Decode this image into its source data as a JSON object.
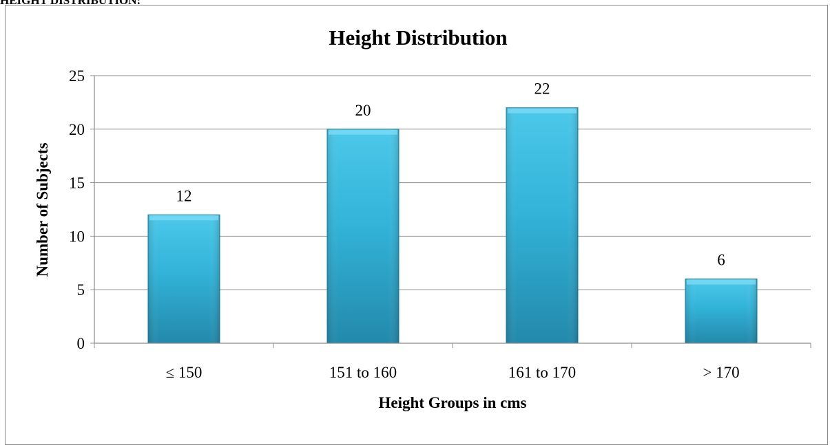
{
  "page_heading": "HEIGHT DISTRIBUTION:",
  "colors": {
    "bar_top": "#4cc8ea",
    "bar_mid": "#32b3d8",
    "bar_bottom": "#2389ab",
    "bar_stroke": "#1f7d9c",
    "gridline": "#8c8c8c",
    "axis": "#8c8c8c"
  },
  "chart_data": {
    "type": "bar",
    "title": "Height Distribution",
    "xlabel": "Height Groups in cms",
    "ylabel": "Number of Subjects",
    "categories": [
      "≤ 150",
      "151 to 160",
      "161 to 170",
      "> 170"
    ],
    "values": [
      12,
      20,
      22,
      6
    ],
    "data_labels": [
      "12",
      "20",
      "22",
      "6"
    ],
    "ylim": [
      0,
      25
    ],
    "yticks": [
      0,
      5,
      10,
      15,
      20,
      25
    ],
    "ytick_labels": [
      "0",
      "5",
      "10",
      "15",
      "20",
      "25"
    ],
    "grid": true,
    "legend": "none"
  }
}
